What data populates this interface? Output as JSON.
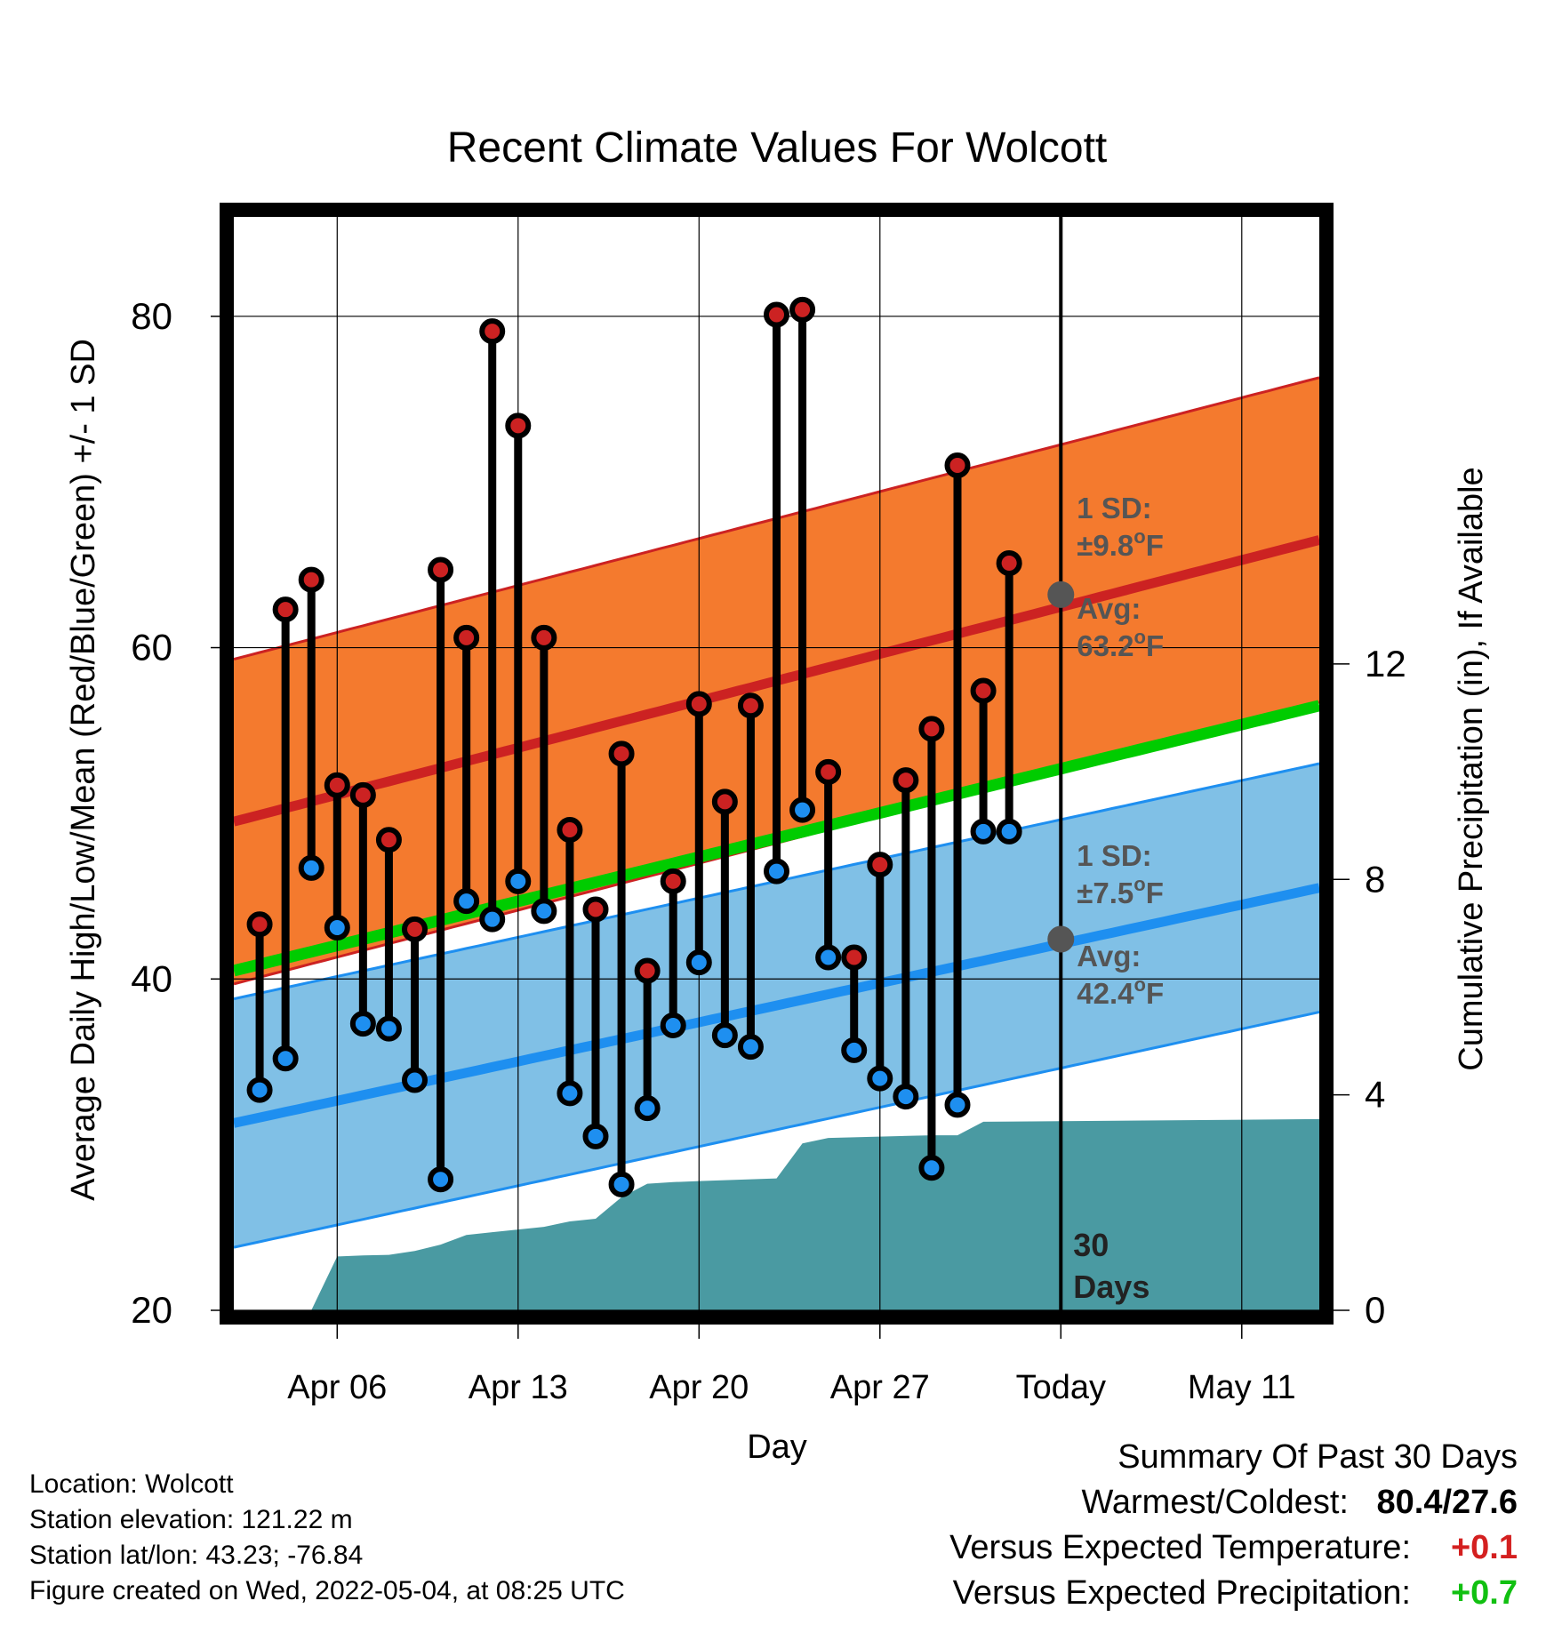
{
  "chart_data": {
    "type": "line",
    "title": "Recent Climate Values For Wolcott",
    "xlabel": "Day",
    "ylabel": "Average Daily High/Low/Mean (Red/Blue/Green) +/- 1 SD",
    "y2label": "Cumulative Precipitation (in), If Available",
    "ylim": [
      20,
      86
    ],
    "y2lim": [
      0,
      20.3
    ],
    "yticks": [
      "20",
      "40",
      "60",
      "80"
    ],
    "y2ticks": [
      "0",
      "4",
      "8",
      "12"
    ],
    "xlim": [
      "Apr 02",
      "May 14"
    ],
    "xticks": [
      {
        "date": "Apr 06",
        "label": "Apr 06"
      },
      {
        "date": "Apr 13",
        "label": "Apr 13"
      },
      {
        "date": "Apr 20",
        "label": "Apr 20"
      },
      {
        "date": "Apr 27",
        "label": "Apr 27"
      },
      {
        "date": "May 04",
        "label": "Today"
      },
      {
        "date": "May 11",
        "label": "May 11"
      }
    ],
    "today": "May 04",
    "grid": true,
    "colors": {
      "high_band": "#f47a2e",
      "high_line": "#cc2222",
      "low_band": "#80c0e6",
      "low_line": "#1e8ff0",
      "mean_line": "#00cc00",
      "precip": "#4a9aa2",
      "high_marker": "#cc2222",
      "low_marker": "#1e8ff0",
      "annotation": "#555555"
    },
    "normals": {
      "dates": [
        "Apr 02",
        "May 14"
      ],
      "high_avg": [
        49.5,
        66.5
      ],
      "high_sd": 9.8,
      "low_avg": [
        31.3,
        45.5
      ],
      "low_sd": 7.5,
      "mean_avg": [
        40.5,
        56.5
      ]
    },
    "series": [
      {
        "name": "High",
        "points": [
          {
            "date": "Apr 03",
            "value": 43.3
          },
          {
            "date": "Apr 04",
            "value": 62.3
          },
          {
            "date": "Apr 05",
            "value": 64.1
          },
          {
            "date": "Apr 06",
            "value": 51.7
          },
          {
            "date": "Apr 07",
            "value": 51.1
          },
          {
            "date": "Apr 08",
            "value": 48.4
          },
          {
            "date": "Apr 09",
            "value": 43.0
          },
          {
            "date": "Apr 10",
            "value": 64.7
          },
          {
            "date": "Apr 11",
            "value": 60.6
          },
          {
            "date": "Apr 12",
            "value": 79.1
          },
          {
            "date": "Apr 13",
            "value": 73.4
          },
          {
            "date": "Apr 14",
            "value": 60.6
          },
          {
            "date": "Apr 15",
            "value": 49.0
          },
          {
            "date": "Apr 16",
            "value": 44.2
          },
          {
            "date": "Apr 17",
            "value": 53.6
          },
          {
            "date": "Apr 18",
            "value": 40.5
          },
          {
            "date": "Apr 19",
            "value": 45.9
          },
          {
            "date": "Apr 20",
            "value": 56.6
          },
          {
            "date": "Apr 21",
            "value": 50.7
          },
          {
            "date": "Apr 22",
            "value": 56.5
          },
          {
            "date": "Apr 23",
            "value": 80.1
          },
          {
            "date": "Apr 24",
            "value": 80.4
          },
          {
            "date": "Apr 25",
            "value": 52.5
          },
          {
            "date": "Apr 26",
            "value": 41.3
          },
          {
            "date": "Apr 27",
            "value": 46.9
          },
          {
            "date": "Apr 28",
            "value": 52.0
          },
          {
            "date": "Apr 29",
            "value": 55.1
          },
          {
            "date": "Apr 30",
            "value": 71.0
          },
          {
            "date": "May 01",
            "value": 57.4
          },
          {
            "date": "May 02",
            "value": 65.1
          }
        ]
      },
      {
        "name": "Low",
        "points": [
          {
            "date": "Apr 03",
            "value": 33.3
          },
          {
            "date": "Apr 04",
            "value": 35.2
          },
          {
            "date": "Apr 05",
            "value": 46.7
          },
          {
            "date": "Apr 06",
            "value": 43.1
          },
          {
            "date": "Apr 07",
            "value": 37.3
          },
          {
            "date": "Apr 08",
            "value": 37.0
          },
          {
            "date": "Apr 09",
            "value": 33.9
          },
          {
            "date": "Apr 10",
            "value": 27.9
          },
          {
            "date": "Apr 11",
            "value": 44.7
          },
          {
            "date": "Apr 12",
            "value": 43.6
          },
          {
            "date": "Apr 13",
            "value": 45.9
          },
          {
            "date": "Apr 14",
            "value": 44.1
          },
          {
            "date": "Apr 15",
            "value": 33.1
          },
          {
            "date": "Apr 16",
            "value": 30.5
          },
          {
            "date": "Apr 17",
            "value": 27.6
          },
          {
            "date": "Apr 18",
            "value": 32.2
          },
          {
            "date": "Apr 19",
            "value": 37.2
          },
          {
            "date": "Apr 20",
            "value": 41.0
          },
          {
            "date": "Apr 21",
            "value": 36.6
          },
          {
            "date": "Apr 22",
            "value": 35.9
          },
          {
            "date": "Apr 23",
            "value": 46.5
          },
          {
            "date": "Apr 24",
            "value": 50.2
          },
          {
            "date": "Apr 25",
            "value": 41.3
          },
          {
            "date": "Apr 26",
            "value": 35.7
          },
          {
            "date": "Apr 27",
            "value": 34.0
          },
          {
            "date": "Apr 28",
            "value": 32.9
          },
          {
            "date": "Apr 29",
            "value": 28.6
          },
          {
            "date": "Apr 30",
            "value": 32.4
          },
          {
            "date": "May 01",
            "value": 48.9
          },
          {
            "date": "May 02",
            "value": 48.9
          }
        ]
      },
      {
        "name": "Cumulative Precipitation",
        "points": [
          {
            "date": "Apr 05",
            "value": 0.0
          },
          {
            "date": "Apr 06",
            "value": 1.0
          },
          {
            "date": "Apr 07",
            "value": 1.02
          },
          {
            "date": "Apr 08",
            "value": 1.03
          },
          {
            "date": "Apr 09",
            "value": 1.1
          },
          {
            "date": "Apr 10",
            "value": 1.22
          },
          {
            "date": "Apr 11",
            "value": 1.4
          },
          {
            "date": "Apr 12",
            "value": 1.45
          },
          {
            "date": "Apr 13",
            "value": 1.5
          },
          {
            "date": "Apr 14",
            "value": 1.55
          },
          {
            "date": "Apr 15",
            "value": 1.65
          },
          {
            "date": "Apr 16",
            "value": 1.7
          },
          {
            "date": "Apr 17",
            "value": 2.1
          },
          {
            "date": "Apr 18",
            "value": 2.35
          },
          {
            "date": "Apr 19",
            "value": 2.38
          },
          {
            "date": "Apr 20",
            "value": 2.4
          },
          {
            "date": "Apr 23",
            "value": 2.45
          },
          {
            "date": "Apr 24",
            "value": 3.1
          },
          {
            "date": "Apr 25",
            "value": 3.2
          },
          {
            "date": "Apr 29",
            "value": 3.25
          },
          {
            "date": "Apr 30",
            "value": 3.25
          },
          {
            "date": "May 01",
            "value": 3.5
          },
          {
            "date": "May 14",
            "value": 3.55
          }
        ]
      }
    ],
    "annotations": {
      "high_sd": "1 SD:",
      "high_sd_value": "±9.8",
      "high_avg": "Avg:",
      "high_avg_value": "63.2",
      "low_sd": "1 SD:",
      "low_sd_value": "±7.5",
      "low_avg": "Avg:",
      "low_avg_value": "42.4",
      "degree": "o",
      "unit": "F",
      "days_number": "30",
      "days_word": "Days",
      "high_today": 63.2,
      "low_today": 42.4
    }
  },
  "info": {
    "location": "Location: Wolcott",
    "elevation": "Station elevation: 121.22 m",
    "latlon": "Station lat/lon: 43.23; -76.84",
    "created": "Figure created on Wed, 2022-05-04, at 08:25 UTC"
  },
  "summary": {
    "title": "Summary Of Past 30 Days",
    "warmest_label": "Warmest/Coldest:",
    "warmest_value": "80.4/27.6",
    "temp_label": "Versus Expected Temperature:",
    "temp_value": "+0.1",
    "precip_label": "Versus Expected Precipitation:",
    "precip_value": "+0.7"
  }
}
